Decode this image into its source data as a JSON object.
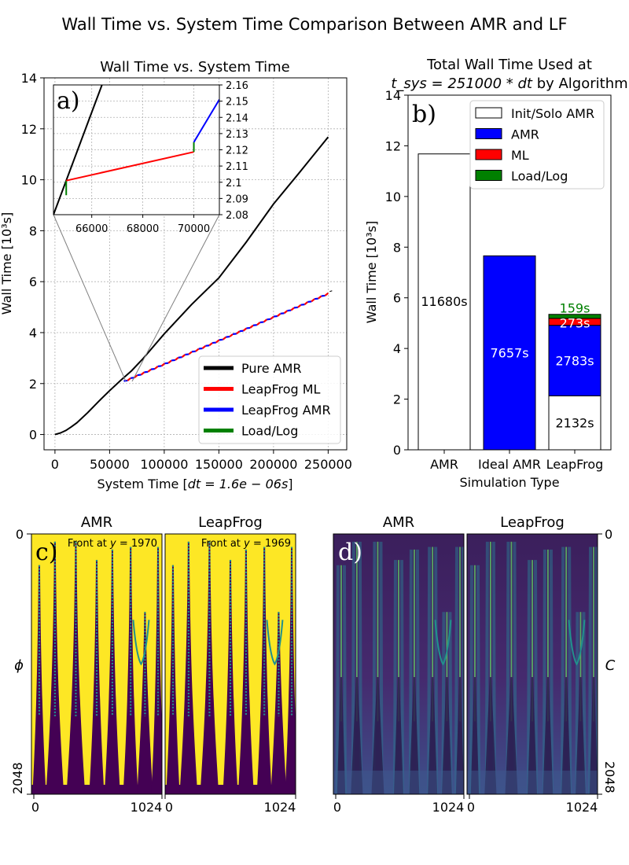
{
  "figure_title": "Wall Time vs. System Time Comparison Between AMR and LF",
  "chart_data": [
    {
      "id": "a",
      "type": "line",
      "title": "Wall Time vs. System Time",
      "xlabel": "System Time [dt = 1.6e−06s]",
      "xlabel_parts": {
        "prefix": "System Time [",
        "math": "dt = 1.6e − 06s",
        "suffix": "]"
      },
      "ylabel": "Wall Time [10³s]",
      "xlim": [
        -10000,
        267000
      ],
      "ylim": [
        -0.6,
        14
      ],
      "xticks": [
        0,
        50000,
        100000,
        150000,
        200000,
        250000
      ],
      "xtick_labels": [
        "0",
        "50000",
        "100000",
        "150000",
        "200000",
        "250000"
      ],
      "yticks": [
        0,
        2,
        4,
        6,
        8,
        10,
        12,
        14
      ],
      "ytick_labels": [
        "0",
        "2",
        "4",
        "6",
        "8",
        "10",
        "12",
        "14"
      ],
      "grid": true,
      "legend_position": "lower-right",
      "legend": [
        {
          "label": "Pure AMR",
          "color": "#000000"
        },
        {
          "label": "LeapFrog ML",
          "color": "#ff0000"
        },
        {
          "label": "LeapFrog AMR",
          "color": "#0000ff"
        },
        {
          "label": "Load/Log",
          "color": "#008000"
        }
      ],
      "series": [
        {
          "name": "Pure AMR",
          "color": "#000000",
          "x": [
            0,
            5000,
            10000,
            15000,
            20000,
            30000,
            40000,
            50000,
            60000,
            70000,
            80000,
            100000,
            125000,
            150000,
            175000,
            200000,
            225000,
            250000
          ],
          "y": [
            0,
            0.06,
            0.16,
            0.3,
            0.46,
            0.86,
            1.3,
            1.72,
            2.12,
            2.5,
            2.95,
            3.95,
            5.1,
            6.15,
            7.55,
            9.05,
            10.35,
            11.68
          ]
        },
        {
          "name": "LeapFrog (alternating ML / AMR)",
          "color": "#0000ff",
          "ml_color": "#ff0000",
          "start": [
            63000,
            2.1
          ],
          "end": [
            250000,
            5.55
          ],
          "steps": 30
        }
      ],
      "inset": {
        "label": "a)",
        "xlim": [
          64500,
          71000
        ],
        "ylim": [
          2.08,
          2.16
        ],
        "xticks": [
          66000,
          68000,
          70000
        ],
        "xtick_labels": [
          "66000",
          "68000",
          "70000"
        ],
        "yticks": [
          2.08,
          2.09,
          2.1,
          2.11,
          2.12,
          2.13,
          2.14,
          2.15,
          2.16
        ],
        "ytick_labels": [
          "2.08",
          "2.09",
          "2.1",
          "2.11",
          "2.12",
          "2.13",
          "2.14",
          "2.15",
          "2.16"
        ],
        "segments": [
          {
            "name": "Pure AMR",
            "color": "#000000",
            "x": [
              64500,
              66400
            ],
            "y": [
              2.08,
              2.16
            ]
          },
          {
            "name": "Load/Log",
            "color": "#008000",
            "x": [
              65000,
              65000
            ],
            "y": [
              2.092,
              2.101
            ]
          },
          {
            "name": "LeapFrog ML",
            "color": "#ff0000",
            "x": [
              65000,
              70000
            ],
            "y": [
              2.101,
              2.1187
            ]
          },
          {
            "name": "Load/Log",
            "color": "#008000",
            "x": [
              70000,
              70000
            ],
            "y": [
              2.1187,
              2.1247
            ]
          },
          {
            "name": "LeapFrog AMR",
            "color": "#0000ff",
            "x": [
              70000,
              71000
            ],
            "y": [
              2.1247,
              2.151
            ]
          }
        ]
      }
    },
    {
      "id": "b",
      "type": "bar",
      "label": "b)",
      "title_line1": "Total Wall Time Used at",
      "title_line2_math": "t_sys = 251000 * dt",
      "title_line2_suffix": " by Algorithm",
      "xlabel": "Simulation Type",
      "ylabel": "Wall Time [10³s]",
      "ylim": [
        0,
        14
      ],
      "yticks": [
        0,
        2,
        4,
        6,
        8,
        10,
        12,
        14
      ],
      "ytick_labels": [
        "0",
        "2",
        "4",
        "6",
        "8",
        "10",
        "12",
        "14"
      ],
      "categories": [
        "AMR",
        "Ideal AMR",
        "LeapFrog"
      ],
      "legend_position": "upper-right",
      "legend": [
        {
          "label": "Init/Solo AMR",
          "color": "#ffffff"
        },
        {
          "label": "AMR",
          "color": "#0000ff"
        },
        {
          "label": "ML",
          "color": "#ff0000"
        },
        {
          "label": "Load/Log",
          "color": "#008000"
        }
      ],
      "series": [
        {
          "name": "Init/Solo AMR",
          "color": "#ffffff",
          "values": [
            11.68,
            0,
            2.132
          ],
          "labels": [
            "11680s",
            "",
            "2132s"
          ],
          "label_color": "#000000"
        },
        {
          "name": "AMR",
          "color": "#0000ff",
          "values": [
            0,
            7.657,
            2.783
          ],
          "labels": [
            "",
            "7657s",
            "2783s"
          ],
          "label_color": "#ffffff"
        },
        {
          "name": "ML",
          "color": "#ff0000",
          "values": [
            0,
            0,
            0.273
          ],
          "labels": [
            "",
            "",
            "273s"
          ],
          "label_color": "#ffffff"
        },
        {
          "name": "Load/Log",
          "color": "#008000",
          "values": [
            0,
            0,
            0.159
          ],
          "labels": [
            "",
            "",
            "159s"
          ],
          "label_color": "#008000"
        }
      ]
    }
  ],
  "panel_c": {
    "label": "c)",
    "titles": [
      "AMR",
      "LeapFrog"
    ],
    "annotations": [
      "Front at y = 1970",
      "Front at y = 1969"
    ],
    "annotation_parts": [
      {
        "prefix": "Front at ",
        "math": "y",
        "suffix": " = 1970"
      },
      {
        "prefix": "Front at ",
        "math": "y",
        "suffix": " = 1969"
      }
    ],
    "ylabel": "ϕ",
    "xtick_labels": [
      "0",
      "1024"
    ],
    "ytick_labels": [
      "0",
      "2048"
    ]
  },
  "panel_d": {
    "label": "d)",
    "titles": [
      "AMR",
      "LeapFrog"
    ],
    "ylabel": "C",
    "xtick_labels": [
      "0",
      "1024"
    ],
    "ytick_labels": [
      "0",
      "2048"
    ]
  },
  "colors": {
    "viridis_yellow": "#fde725",
    "viridis_purple": "#440154",
    "viridis_teal": "#21918c",
    "viridis_green": "#5ec962",
    "dark_purple": "#3b1f5c"
  }
}
